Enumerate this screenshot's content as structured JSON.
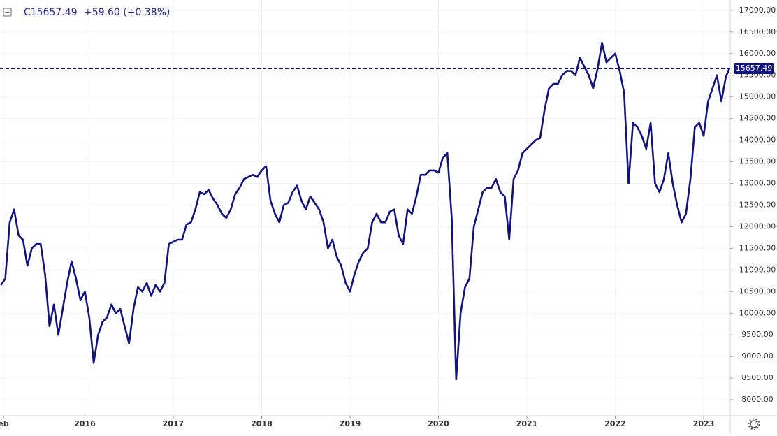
{
  "chart_data": {
    "type": "line",
    "header": {
      "symbol_price": "C15657.49",
      "change": "+59.60 (+0.38%)"
    },
    "last_value": 15657.49,
    "color": "#13137f",
    "grid": true,
    "x": [
      2015.05,
      2015.1,
      2015.15,
      2015.2,
      2015.25,
      2015.3,
      2015.35,
      2015.4,
      2015.45,
      2015.5,
      2015.55,
      2015.6,
      2015.65,
      2015.7,
      2015.75,
      2015.8,
      2015.85,
      2015.9,
      2015.95,
      2016.0,
      2016.05,
      2016.1,
      2016.15,
      2016.2,
      2016.25,
      2016.3,
      2016.35,
      2016.4,
      2016.45,
      2016.5,
      2016.55,
      2016.6,
      2016.65,
      2016.7,
      2016.75,
      2016.8,
      2016.85,
      2016.9,
      2016.95,
      2017.0,
      2017.05,
      2017.1,
      2017.15,
      2017.2,
      2017.25,
      2017.3,
      2017.35,
      2017.4,
      2017.45,
      2017.5,
      2017.55,
      2017.6,
      2017.65,
      2017.7,
      2017.75,
      2017.8,
      2017.85,
      2017.9,
      2017.95,
      2018.0,
      2018.05,
      2018.1,
      2018.15,
      2018.2,
      2018.25,
      2018.3,
      2018.35,
      2018.4,
      2018.45,
      2018.5,
      2018.55,
      2018.6,
      2018.65,
      2018.7,
      2018.75,
      2018.8,
      2018.85,
      2018.9,
      2018.95,
      2019.0,
      2019.05,
      2019.1,
      2019.15,
      2019.2,
      2019.25,
      2019.3,
      2019.35,
      2019.4,
      2019.45,
      2019.5,
      2019.55,
      2019.6,
      2019.65,
      2019.7,
      2019.75,
      2019.8,
      2019.85,
      2019.9,
      2019.95,
      2020.0,
      2020.05,
      2020.1,
      2020.15,
      2020.2,
      2020.25,
      2020.3,
      2020.35,
      2020.4,
      2020.45,
      2020.5,
      2020.55,
      2020.6,
      2020.65,
      2020.7,
      2020.75,
      2020.8,
      2020.85,
      2020.9,
      2020.95,
      2021.0,
      2021.05,
      2021.1,
      2021.15,
      2021.2,
      2021.25,
      2021.3,
      2021.35,
      2021.4,
      2021.45,
      2021.5,
      2021.55,
      2021.6,
      2021.65,
      2021.7,
      2021.75,
      2021.8,
      2021.85,
      2021.9,
      2021.95,
      2022.0,
      2022.05,
      2022.1,
      2022.15,
      2022.2,
      2022.25,
      2022.3,
      2022.35,
      2022.4,
      2022.45,
      2022.5,
      2022.55,
      2022.6,
      2022.65,
      2022.7,
      2022.75,
      2022.8,
      2022.85,
      2022.9,
      2022.95,
      2023.0,
      2023.05,
      2023.1,
      2023.15,
      2023.2,
      2023.25,
      2023.29
    ],
    "values": [
      10650,
      10800,
      12100,
      12400,
      11800,
      11700,
      11100,
      11500,
      11600,
      11600,
      10900,
      9700,
      10200,
      9500,
      10100,
      10700,
      11200,
      10800,
      10300,
      10500,
      9900,
      8850,
      9500,
      9800,
      9900,
      10200,
      10000,
      10100,
      9700,
      9300,
      10100,
      10600,
      10500,
      10700,
      10400,
      10650,
      10500,
      10700,
      11600,
      11650,
      11700,
      11700,
      12050,
      12100,
      12400,
      12800,
      12750,
      12850,
      12650,
      12500,
      12300,
      12200,
      12400,
      12750,
      12900,
      13100,
      13150,
      13200,
      13150,
      13300,
      13400,
      12600,
      12300,
      12100,
      12500,
      12550,
      12800,
      12950,
      12600,
      12400,
      12700,
      12550,
      12400,
      12100,
      11500,
      11700,
      11300,
      11100,
      10700,
      10500,
      10900,
      11200,
      11400,
      11500,
      12100,
      12300,
      12100,
      12100,
      12350,
      12400,
      11800,
      11600,
      12400,
      12300,
      12700,
      13200,
      13200,
      13300,
      13300,
      13250,
      13600,
      13700,
      12200,
      8470,
      10000,
      10600,
      10800,
      12000,
      12400,
      12800,
      12900,
      12900,
      13100,
      12800,
      12700,
      11700,
      13100,
      13300,
      13700,
      13800,
      13900,
      14000,
      14050,
      14700,
      15200,
      15300,
      15300,
      15500,
      15600,
      15600,
      15500,
      15900,
      15700,
      15500,
      15200,
      15650,
      16250,
      15800,
      15900,
      16000,
      15600,
      15100,
      13000,
      14400,
      14300,
      14100,
      13800,
      14400,
      13000,
      12800,
      13100,
      13700,
      13000,
      12500,
      12100,
      12300,
      13100,
      14300,
      14400,
      14100,
      14900,
      15200,
      15500,
      14900,
      15450,
      15657.49
    ],
    "xlim": [
      2015.04,
      2023.3
    ],
    "xticks": [
      {
        "value": 2015.08,
        "label": "eb"
      },
      2016,
      2017,
      2018,
      2019,
      2020,
      2021,
      2022,
      2023
    ],
    "ylim": [
      7630,
      17240
    ],
    "yticks": [
      {
        "value": 8000,
        "label": "8000.00"
      },
      {
        "value": 8500,
        "label": "8500.00"
      },
      {
        "value": 9000,
        "label": "9000.00"
      },
      {
        "value": 9500,
        "label": "9500.00"
      },
      {
        "value": 10000,
        "label": "10000.00"
      },
      {
        "value": 10500,
        "label": "10500.00"
      },
      {
        "value": 11000,
        "label": "11000.00"
      },
      {
        "value": 11500,
        "label": "11500.00"
      },
      {
        "value": 12000,
        "label": "12000.00"
      },
      {
        "value": 12500,
        "label": "12500.00"
      },
      {
        "value": 13000,
        "label": "13000.00"
      },
      {
        "value": 13500,
        "label": "13500.00"
      },
      {
        "value": 14000,
        "label": "14000.00"
      },
      {
        "value": 14500,
        "label": "14500.00"
      },
      {
        "value": 15000,
        "label": "15000.00"
      },
      {
        "value": 15500,
        "label": "15500.00"
      },
      {
        "value": 16000,
        "label": "16000.00"
      },
      {
        "value": 16500,
        "label": "16500.00"
      },
      {
        "value": 17000,
        "label": "17000.00"
      }
    ]
  }
}
